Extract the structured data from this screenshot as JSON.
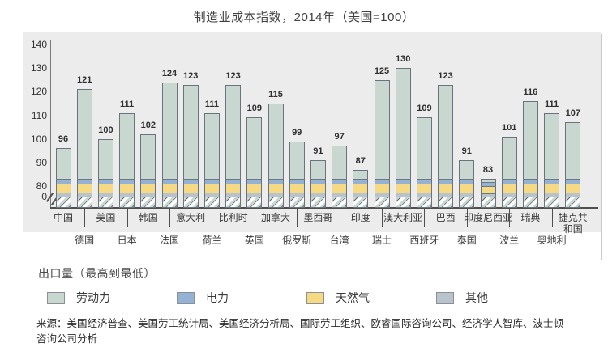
{
  "title": "制造业成本指数，2014年（美国=100）",
  "chart_data": {
    "type": "bar",
    "stacked": true,
    "title": "制造业成本指数，2014年（美国=100）",
    "y_axis": {
      "ticks": [
        140,
        130,
        120,
        110,
        100,
        90,
        80
      ],
      "zero_label": "0",
      "broken_axis": true,
      "break_between": [
        0,
        80
      ],
      "range_shown": [
        80,
        140
      ]
    },
    "bars": [
      {
        "country": "中国",
        "value": 96
      },
      {
        "country": "德国",
        "value": 121
      },
      {
        "country": "美国",
        "value": 100
      },
      {
        "country": "日本",
        "value": 111
      },
      {
        "country": "韩国",
        "value": 102
      },
      {
        "country": "法国",
        "value": 124
      },
      {
        "country": "意大利",
        "value": 123
      },
      {
        "country": "荷兰",
        "value": 111
      },
      {
        "country": "比利时",
        "value": 123
      },
      {
        "country": "英国",
        "value": 109
      },
      {
        "country": "加拿大",
        "value": 115
      },
      {
        "country": "俄罗斯",
        "value": 99
      },
      {
        "country": "墨西哥",
        "value": 91
      },
      {
        "country": "台湾",
        "value": 97
      },
      {
        "country": "印度",
        "value": 87
      },
      {
        "country": "瑞士",
        "value": 125
      },
      {
        "country": "澳大利亚",
        "value": 130
      },
      {
        "country": "西班牙",
        "value": 109
      },
      {
        "country": "巴西",
        "value": 123
      },
      {
        "country": "泰国",
        "value": 91
      },
      {
        "country": "印度尼西亚",
        "value": 83
      },
      {
        "country": "波兰",
        "value": 101
      },
      {
        "country": "瑞典",
        "value": 116
      },
      {
        "country": "奥地利",
        "value": 111
      },
      {
        "country": "捷克共\n和国",
        "value": 107
      }
    ],
    "stack_order_top_to_bottom": [
      "劳动力",
      "电力",
      "天然气",
      "其他"
    ],
    "colors": {
      "labor": "#c9d7d1",
      "electricity": "#94b2d4",
      "natural_gas": "#f5d983",
      "other": "#b9c3cc"
    },
    "legend_position": "bottom"
  },
  "legend": {
    "note": "出口量（最高到最低）",
    "items": [
      {
        "key": "labor",
        "label": "劳动力"
      },
      {
        "key": "electricity",
        "label": "电力"
      },
      {
        "key": "natural_gas",
        "label": "天然气"
      },
      {
        "key": "other",
        "label": "其他"
      }
    ]
  },
  "source": "来源：美国经济普查、美国劳工统计局、美国经济分析局、国际劳工组织、欧睿国际咨询公司、经济学人智库、波士顿咨询公司分析"
}
